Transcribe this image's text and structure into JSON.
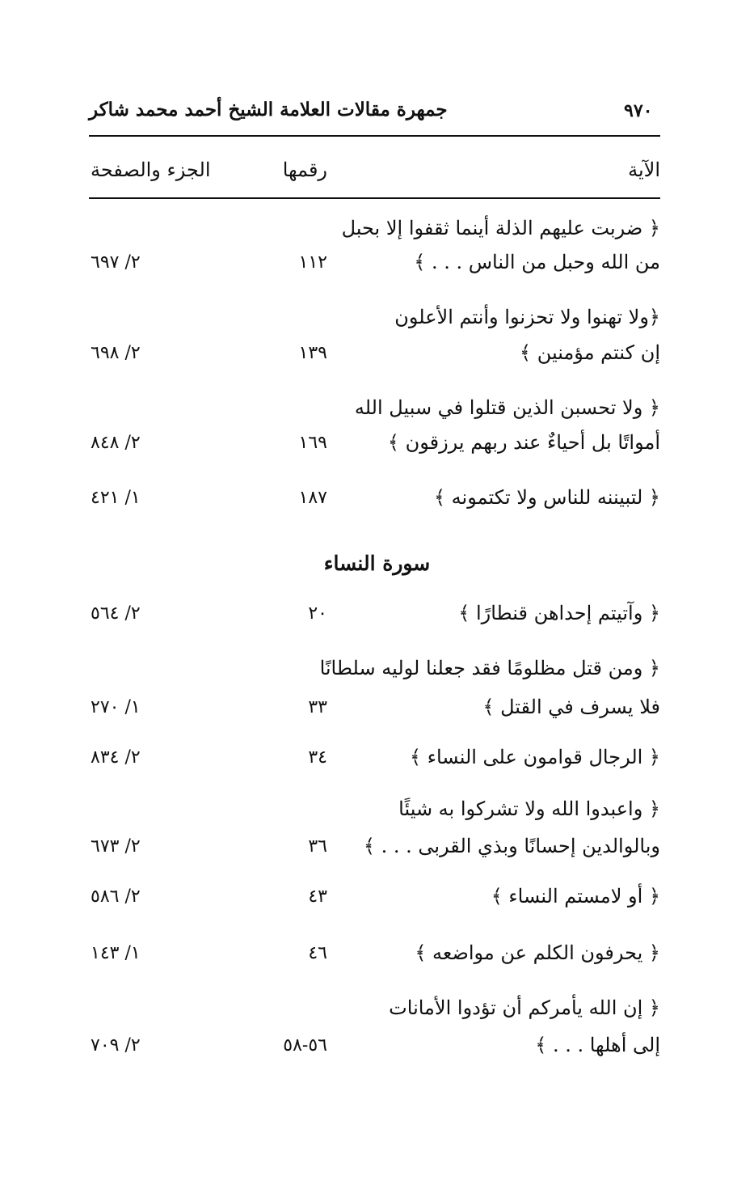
{
  "header": {
    "page_number": "٩٧٠",
    "book_title": "جمهرة مقالات العلامة الشيخ أحمد محمد شاكر"
  },
  "columns": {
    "ayah": "الآية",
    "number": "رقمها",
    "volume_page": "الجزء والصفحة"
  },
  "entries": [
    {
      "lines": [
        "﴿ ضربت عليهم الذلة أينما ثقفوا إلا بحبل",
        "من الله وحبل من الناس . . . ﴾"
      ],
      "number": "١١٢",
      "ref": "٢/ ٦٩٧"
    },
    {
      "lines": [
        "﴿ولا تهنوا ولا تحزنوا وأنتم الأعلون",
        "إن كنتم مؤمنين ﴾"
      ],
      "number": "١٣٩",
      "ref": "٢/ ٦٩٨"
    },
    {
      "lines": [
        "﴿ ولا تحسبن الذين قتلوا في سبيل الله",
        "أمواتًا بل أحياءٌ عند ربهم يرزقون ﴾"
      ],
      "number": "١٦٩",
      "ref": "٢/ ٨٤٨"
    },
    {
      "lines": [
        "﴿ لتبيننه للناس ولا تكتمونه ﴾"
      ],
      "number": "١٨٧",
      "ref": "١/ ٤٢١"
    }
  ],
  "section_title": "سورة النساء",
  "entries2": [
    {
      "lines": [
        "﴿ وآتيتم إحداهن قنطارًا ﴾"
      ],
      "number": "٢٠",
      "ref": "٢/ ٥٦٤"
    },
    {
      "lines": [
        "﴿ ومن قتل مظلومًا فقد جعلنا لوليه سلطانًا",
        "فلا يسرف في القتل ﴾"
      ],
      "number": "٣٣",
      "ref": "١/ ٢٧٠"
    },
    {
      "lines": [
        "﴿ الرجال قوامون على النساء ﴾"
      ],
      "number": "٣٤",
      "ref": "٢/ ٨٣٤"
    },
    {
      "lines": [
        "﴿ واعبدوا الله ولا تشركوا به شيئًا",
        "وبالوالدين إحسانًا وبذي القربى . . . ﴾"
      ],
      "number": "٣٦",
      "ref": "٢/ ٦٧٣"
    },
    {
      "lines": [
        "﴿ أو لامستم النساء ﴾"
      ],
      "number": "٤٣",
      "ref": "٢/ ٥٨٦"
    },
    {
      "lines": [
        "﴿ يحرفون الكلم عن مواضعه ﴾"
      ],
      "number": "٤٦",
      "ref": "١/ ١٤٣"
    },
    {
      "lines": [
        "﴿ إن الله يأمركم أن تؤدوا الأمانات",
        "إلى أهلها . . . ﴾"
      ],
      "number": "٥٦-٥٨",
      "ref": "٢/ ٧٠٩"
    }
  ]
}
